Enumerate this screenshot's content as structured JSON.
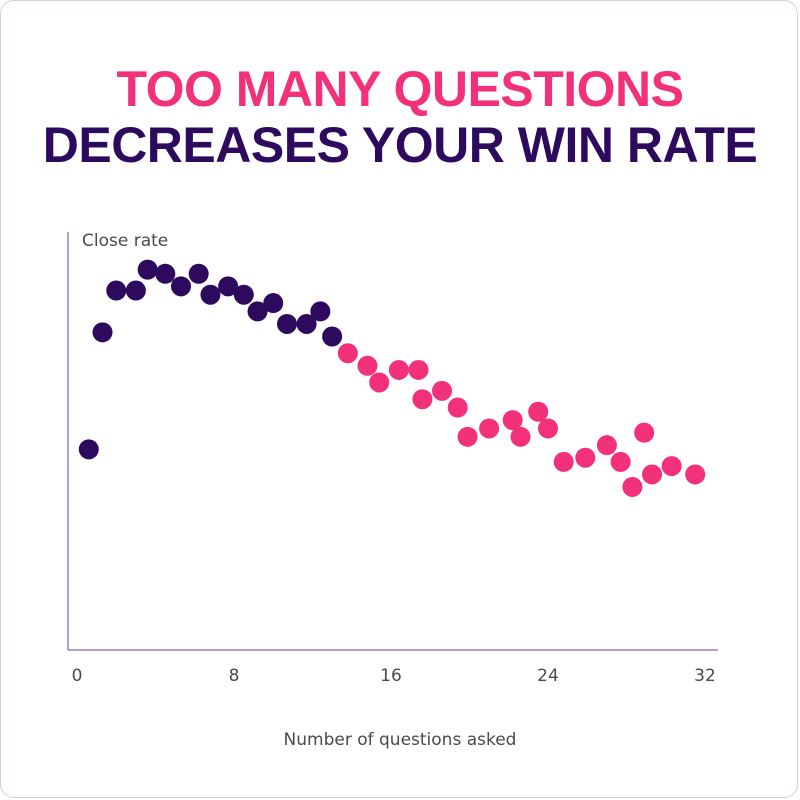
{
  "title": {
    "line1": "TOO MANY QUESTIONS",
    "line2": "DECREASES YOUR WIN RATE"
  },
  "colors": {
    "title_line1": "#f2317a",
    "title_line2": "#2d0a5e",
    "series_dark": "#2d0a5e",
    "series_pink": "#f2317a",
    "axis": "#9b7fc6"
  },
  "chart_data": {
    "type": "scatter",
    "ylabel": "Close rate",
    "xlabel": "Number of questions asked",
    "xlim": [
      0,
      32
    ],
    "x_ticks": [
      "0",
      "8",
      "16",
      "24",
      "32"
    ],
    "ylim": [
      0,
      100
    ],
    "grid": false,
    "series": [
      {
        "color": "#2d0a5e",
        "points": [
          [
            0.6,
            48
          ],
          [
            1.3,
            76
          ],
          [
            2.0,
            86
          ],
          [
            3.0,
            86
          ],
          [
            3.6,
            91
          ],
          [
            4.5,
            90
          ],
          [
            5.3,
            87
          ],
          [
            6.2,
            90
          ],
          [
            6.8,
            85
          ],
          [
            7.7,
            87
          ],
          [
            8.5,
            85
          ],
          [
            9.2,
            81
          ],
          [
            10.0,
            83
          ],
          [
            10.7,
            78
          ],
          [
            11.7,
            78
          ],
          [
            12.4,
            81
          ],
          [
            13.0,
            75
          ]
        ]
      },
      {
        "color": "#f2317a",
        "points": [
          [
            13.8,
            71
          ],
          [
            14.8,
            68
          ],
          [
            15.4,
            64
          ],
          [
            16.4,
            67
          ],
          [
            17.4,
            67
          ],
          [
            17.6,
            60
          ],
          [
            18.6,
            62
          ],
          [
            19.4,
            58
          ],
          [
            19.9,
            51
          ],
          [
            21.0,
            53
          ],
          [
            22.2,
            55
          ],
          [
            22.6,
            51
          ],
          [
            23.5,
            57
          ],
          [
            24.0,
            53
          ],
          [
            24.8,
            45
          ],
          [
            25.9,
            46
          ],
          [
            27.0,
            49
          ],
          [
            27.7,
            45
          ],
          [
            28.3,
            39
          ],
          [
            28.9,
            52
          ],
          [
            29.3,
            42
          ],
          [
            30.3,
            44
          ],
          [
            31.5,
            42
          ]
        ]
      }
    ]
  }
}
